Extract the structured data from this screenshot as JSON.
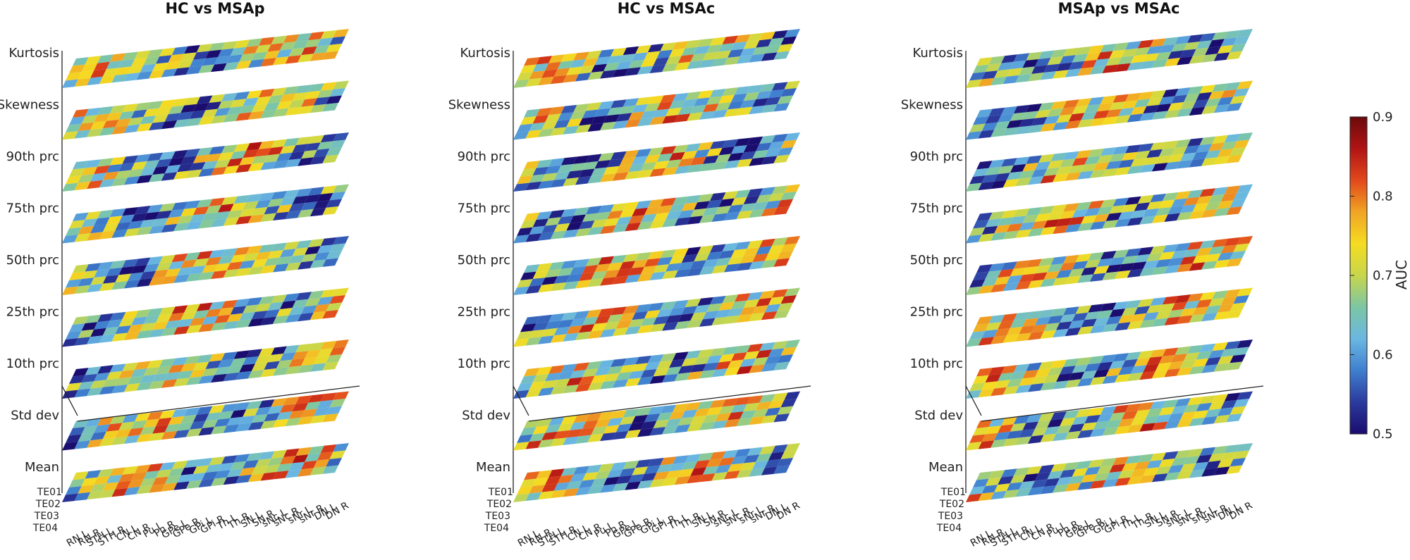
{
  "chart_data": [
    {
      "type": "heatmap",
      "title": "HC vs MSAp",
      "layers": [
        "Kurtosis",
        "Skewness",
        "90th prc",
        "75th prc",
        "50th prc",
        "25th prc",
        "10th prc",
        "Std dev",
        "Mean"
      ],
      "rows": [
        "TE01",
        "TE02",
        "TE03",
        "TE04"
      ],
      "columns": [
        "RN L",
        "RN R",
        "STH L",
        "STH R",
        "CN L",
        "CN R",
        "Pu L",
        "Pu R",
        "GPe L",
        "GPe R",
        "GPi L",
        "GPi R",
        "Th L",
        "Th R",
        "SN L",
        "SN R",
        "sNc L",
        "sNc R",
        "sNr L",
        "sNr R",
        "DN L",
        "DN R"
      ],
      "value_label": "AUC",
      "value_range": [
        0.5,
        0.9
      ]
    },
    {
      "type": "heatmap",
      "title": "HC vs MSAc",
      "layers": [
        "Kurtosis",
        "Skewness",
        "90th prc",
        "75th prc",
        "50th prc",
        "25th prc",
        "10th prc",
        "Std dev",
        "Mean"
      ],
      "rows": [
        "TE01",
        "TE02",
        "TE03",
        "TE04"
      ],
      "columns": [
        "RN L",
        "RN R",
        "STH L",
        "STH R",
        "CN L",
        "CN R",
        "Pu L",
        "Pu R",
        "GPe L",
        "GPe R",
        "GPi L",
        "GPi R",
        "Th L",
        "Th R",
        "SN L",
        "SN R",
        "sNc L",
        "sNc R",
        "sNr L",
        "sNr R",
        "DN L",
        "DN R"
      ],
      "value_label": "AUC",
      "value_range": [
        0.5,
        0.9
      ]
    },
    {
      "type": "heatmap",
      "title": "MSAp vs MSAc",
      "layers": [
        "Kurtosis",
        "Skewness",
        "90th prc",
        "75th prc",
        "50th prc",
        "25th prc",
        "10th prc",
        "Std dev",
        "Mean"
      ],
      "rows": [
        "TE01",
        "TE02",
        "TE03",
        "TE04"
      ],
      "columns": [
        "RN L",
        "RN R",
        "STH L",
        "STH R",
        "CN L",
        "CN R",
        "Pu L",
        "Pu R",
        "GPe L",
        "GPe R",
        "GPi L",
        "GPi R",
        "Th L",
        "Th R",
        "SN L",
        "SN R",
        "sNc L",
        "sNc R",
        "sNr L",
        "sNr R",
        "DN L",
        "DN R"
      ],
      "value_label": "AUC",
      "value_range": [
        0.5,
        0.9
      ]
    }
  ],
  "colorbar": {
    "label": "AUC",
    "ticks": [
      "0.5",
      "0.6",
      "0.7",
      "0.8",
      "0.9"
    ],
    "ramp": [
      "#1a0d6e",
      "#2b3a9e",
      "#3f7fce",
      "#6ab7e2",
      "#7cc6a4",
      "#c8d64b",
      "#f5dc22",
      "#f0a424",
      "#e2481c",
      "#b11414",
      "#6b0a0a"
    ]
  }
}
